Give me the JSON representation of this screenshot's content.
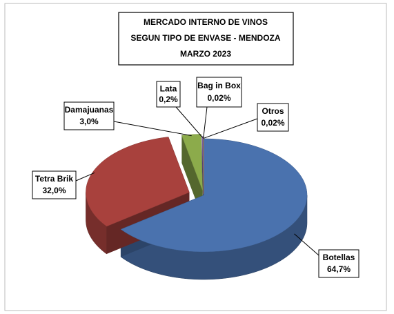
{
  "chart_data": {
    "type": "pie",
    "title": [
      "MERCADO INTERNO DE VINOS",
      "SEGUN TIPO DE ENVASE - MENDOZA",
      "MARZO 2023"
    ],
    "categories": [
      "Botellas",
      "Tetra Brik",
      "Damajuanas",
      "Lata",
      "Bag in Box",
      "Otros"
    ],
    "values": [
      64.7,
      32.0,
      3.0,
      0.2,
      0.02,
      0.02
    ],
    "value_labels": [
      "64,7%",
      "32,0%",
      "3,0%",
      "0,2%",
      "0,02%",
      "0,02%"
    ],
    "colors": [
      "#4a72ae",
      "#a8413d",
      "#8cab4b",
      "#7a5fa0",
      "#4aa0c0",
      "#e08a3c"
    ]
  }
}
